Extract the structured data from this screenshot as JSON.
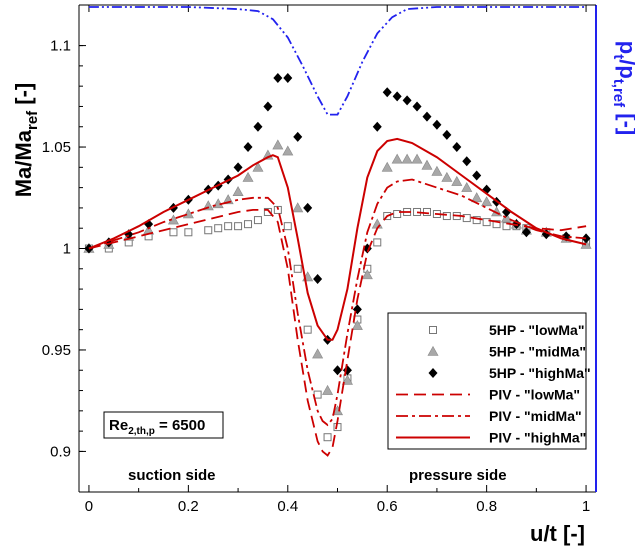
{
  "chart_data": {
    "type": "line",
    "xlabel_main": "u/t",
    "xlabel_unit": "[-]",
    "ylabel_left": "Ma/Ma_ref [-]",
    "ylabel_right": "p_t/p_t,ref [-]",
    "xlim": [
      -0.02,
      1.02
    ],
    "ylim": [
      0.88,
      1.12
    ],
    "xticks": [
      0,
      0.2,
      0.4,
      0.6,
      0.8,
      1
    ],
    "xtick_labels": [
      "0",
      "0.2",
      "0.4",
      "0.6",
      "0.8",
      "1"
    ],
    "yticks": [
      0.9,
      0.95,
      1,
      1.05,
      1.1
    ],
    "ytick_labels": [
      "0.9",
      "0.95",
      "1",
      "1.05",
      "1.1"
    ],
    "grid": false,
    "legend_position": "bottom-right",
    "annotations": {
      "reynolds": {
        "base": "Re",
        "sub": "2,th,p",
        "value": " = 6500"
      },
      "suction": "suction side",
      "pressure": "pressure side"
    },
    "series": [
      {
        "name": "5HP - \"lowMa\"",
        "kind": "marker",
        "marker": "square",
        "color": "#777777",
        "x": [
          0.0,
          0.04,
          0.08,
          0.12,
          0.17,
          0.2,
          0.24,
          0.26,
          0.28,
          0.3,
          0.32,
          0.34,
          0.36,
          0.38,
          0.4,
          0.42,
          0.44,
          0.46,
          0.48,
          0.5,
          0.52,
          0.54,
          0.56,
          0.58,
          0.6,
          0.62,
          0.64,
          0.66,
          0.68,
          0.7,
          0.72,
          0.74,
          0.76,
          0.78,
          0.8,
          0.82,
          0.84,
          0.86,
          0.88,
          0.92,
          0.96,
          1.0
        ],
        "y": [
          1.0,
          1.0,
          1.003,
          1.006,
          1.008,
          1.008,
          1.009,
          1.01,
          1.011,
          1.011,
          1.012,
          1.014,
          1.018,
          1.019,
          1.011,
          0.99,
          0.96,
          0.928,
          0.907,
          0.912,
          0.936,
          0.965,
          0.99,
          1.003,
          1.016,
          1.017,
          1.018,
          1.018,
          1.018,
          1.017,
          1.016,
          1.016,
          1.015,
          1.014,
          1.013,
          1.012,
          1.011,
          1.011,
          1.01,
          1.008,
          1.005,
          1.003
        ]
      },
      {
        "name": "5HP - \"midMa\"",
        "kind": "marker",
        "marker": "triangle",
        "color": "#a8a8a8",
        "x": [
          0.0,
          0.04,
          0.08,
          0.12,
          0.17,
          0.2,
          0.24,
          0.26,
          0.28,
          0.3,
          0.32,
          0.34,
          0.36,
          0.38,
          0.4,
          0.42,
          0.44,
          0.46,
          0.48,
          0.5,
          0.52,
          0.54,
          0.56,
          0.58,
          0.6,
          0.62,
          0.64,
          0.66,
          0.68,
          0.7,
          0.72,
          0.74,
          0.76,
          0.78,
          0.8,
          0.82,
          0.84,
          0.86,
          0.88,
          0.92,
          0.96,
          1.0
        ],
        "y": [
          1.0,
          1.002,
          1.006,
          1.009,
          1.014,
          1.017,
          1.021,
          1.022,
          1.024,
          1.028,
          1.035,
          1.04,
          1.046,
          1.051,
          1.048,
          1.02,
          0.986,
          0.948,
          0.93,
          0.92,
          0.935,
          0.962,
          0.987,
          1.012,
          1.04,
          1.044,
          1.044,
          1.044,
          1.041,
          1.038,
          1.035,
          1.033,
          1.03,
          1.025,
          1.023,
          1.018,
          1.015,
          1.012,
          1.009,
          1.008,
          1.005,
          1.002
        ]
      },
      {
        "name": "5HP - \"highMa\"",
        "kind": "marker",
        "marker": "diamond",
        "color": "#000000",
        "x": [
          0.0,
          0.04,
          0.08,
          0.12,
          0.17,
          0.2,
          0.24,
          0.26,
          0.28,
          0.3,
          0.32,
          0.34,
          0.36,
          0.38,
          0.4,
          0.42,
          0.44,
          0.46,
          0.48,
          0.5,
          0.52,
          0.54,
          0.56,
          0.58,
          0.6,
          0.62,
          0.64,
          0.66,
          0.68,
          0.7,
          0.72,
          0.74,
          0.76,
          0.78,
          0.8,
          0.82,
          0.84,
          0.86,
          0.88,
          0.92,
          0.96,
          1.0
        ],
        "y": [
          1.0,
          1.003,
          1.007,
          1.012,
          1.02,
          1.024,
          1.029,
          1.031,
          1.034,
          1.04,
          1.05,
          1.06,
          1.07,
          1.084,
          1.084,
          1.055,
          1.02,
          0.985,
          0.955,
          0.94,
          0.94,
          0.97,
          1.0,
          1.06,
          1.077,
          1.075,
          1.073,
          1.07,
          1.065,
          1.061,
          1.056,
          1.05,
          1.043,
          1.036,
          1.029,
          1.023,
          1.018,
          1.012,
          1.008,
          1.007,
          1.006,
          1.005
        ]
      },
      {
        "name": "PIV - \"lowMa\"",
        "kind": "line",
        "dash": "dashed",
        "color": "#cc0000",
        "x": [
          0.0,
          0.05,
          0.1,
          0.15,
          0.2,
          0.25,
          0.3,
          0.33,
          0.36,
          0.38,
          0.4,
          0.42,
          0.44,
          0.46,
          0.47,
          0.48,
          0.49,
          0.5,
          0.52,
          0.54,
          0.56,
          0.58,
          0.6,
          0.62,
          0.65,
          0.7,
          0.75,
          0.8,
          0.85,
          0.9,
          0.95,
          1.0
        ],
        "y": [
          1.0,
          1.003,
          1.006,
          1.009,
          1.012,
          1.015,
          1.018,
          1.019,
          1.019,
          1.013,
          0.99,
          0.955,
          0.925,
          0.905,
          0.9,
          0.898,
          0.902,
          0.915,
          0.945,
          0.975,
          0.998,
          1.01,
          1.016,
          1.018,
          1.018,
          1.017,
          1.016,
          1.014,
          1.012,
          1.01,
          1.009,
          1.011
        ]
      },
      {
        "name": "PIV - \"midMa\"",
        "kind": "line",
        "dash": "dashdot",
        "color": "#cc0000",
        "x": [
          0.0,
          0.05,
          0.1,
          0.15,
          0.2,
          0.25,
          0.3,
          0.33,
          0.36,
          0.38,
          0.4,
          0.42,
          0.44,
          0.46,
          0.47,
          0.48,
          0.49,
          0.5,
          0.52,
          0.54,
          0.56,
          0.58,
          0.6,
          0.62,
          0.65,
          0.7,
          0.75,
          0.8,
          0.85,
          0.9,
          0.95,
          1.0
        ],
        "y": [
          1.0,
          1.004,
          1.008,
          1.013,
          1.017,
          1.021,
          1.024,
          1.025,
          1.025,
          1.02,
          1.0,
          0.968,
          0.94,
          0.92,
          0.915,
          0.913,
          0.916,
          0.928,
          0.958,
          0.985,
          1.008,
          1.022,
          1.03,
          1.033,
          1.034,
          1.03,
          1.026,
          1.02,
          1.014,
          1.009,
          1.006,
          1.005
        ]
      },
      {
        "name": "PIV - \"highMa\"",
        "kind": "line",
        "dash": "solid",
        "color": "#cc0000",
        "x": [
          0.0,
          0.05,
          0.1,
          0.15,
          0.2,
          0.25,
          0.3,
          0.33,
          0.36,
          0.37,
          0.38,
          0.4,
          0.42,
          0.44,
          0.46,
          0.48,
          0.49,
          0.5,
          0.52,
          0.54,
          0.56,
          0.58,
          0.6,
          0.62,
          0.65,
          0.7,
          0.75,
          0.8,
          0.85,
          0.9,
          0.95,
          1.0
        ],
        "y": [
          1.0,
          1.005,
          1.011,
          1.018,
          1.024,
          1.03,
          1.036,
          1.041,
          1.045,
          1.046,
          1.045,
          1.03,
          1.005,
          0.978,
          0.962,
          0.955,
          0.955,
          0.96,
          0.98,
          1.01,
          1.035,
          1.048,
          1.053,
          1.054,
          1.052,
          1.045,
          1.036,
          1.027,
          1.018,
          1.01,
          1.005,
          1.002
        ]
      },
      {
        "name": "p_t/p_t,ref",
        "kind": "line",
        "dash": "dashdotdot",
        "color": "#2222ee",
        "axis": "right",
        "x": [
          0.0,
          0.1,
          0.2,
          0.3,
          0.34,
          0.37,
          0.4,
          0.43,
          0.46,
          0.48,
          0.5,
          0.52,
          0.55,
          0.58,
          0.61,
          0.64,
          0.7,
          0.8,
          0.9,
          1.0
        ],
        "y": [
          1.119,
          1.119,
          1.119,
          1.118,
          1.117,
          1.113,
          1.104,
          1.09,
          1.075,
          1.066,
          1.066,
          1.075,
          1.092,
          1.106,
          1.114,
          1.118,
          1.119,
          1.119,
          1.119,
          1.119
        ]
      }
    ]
  }
}
